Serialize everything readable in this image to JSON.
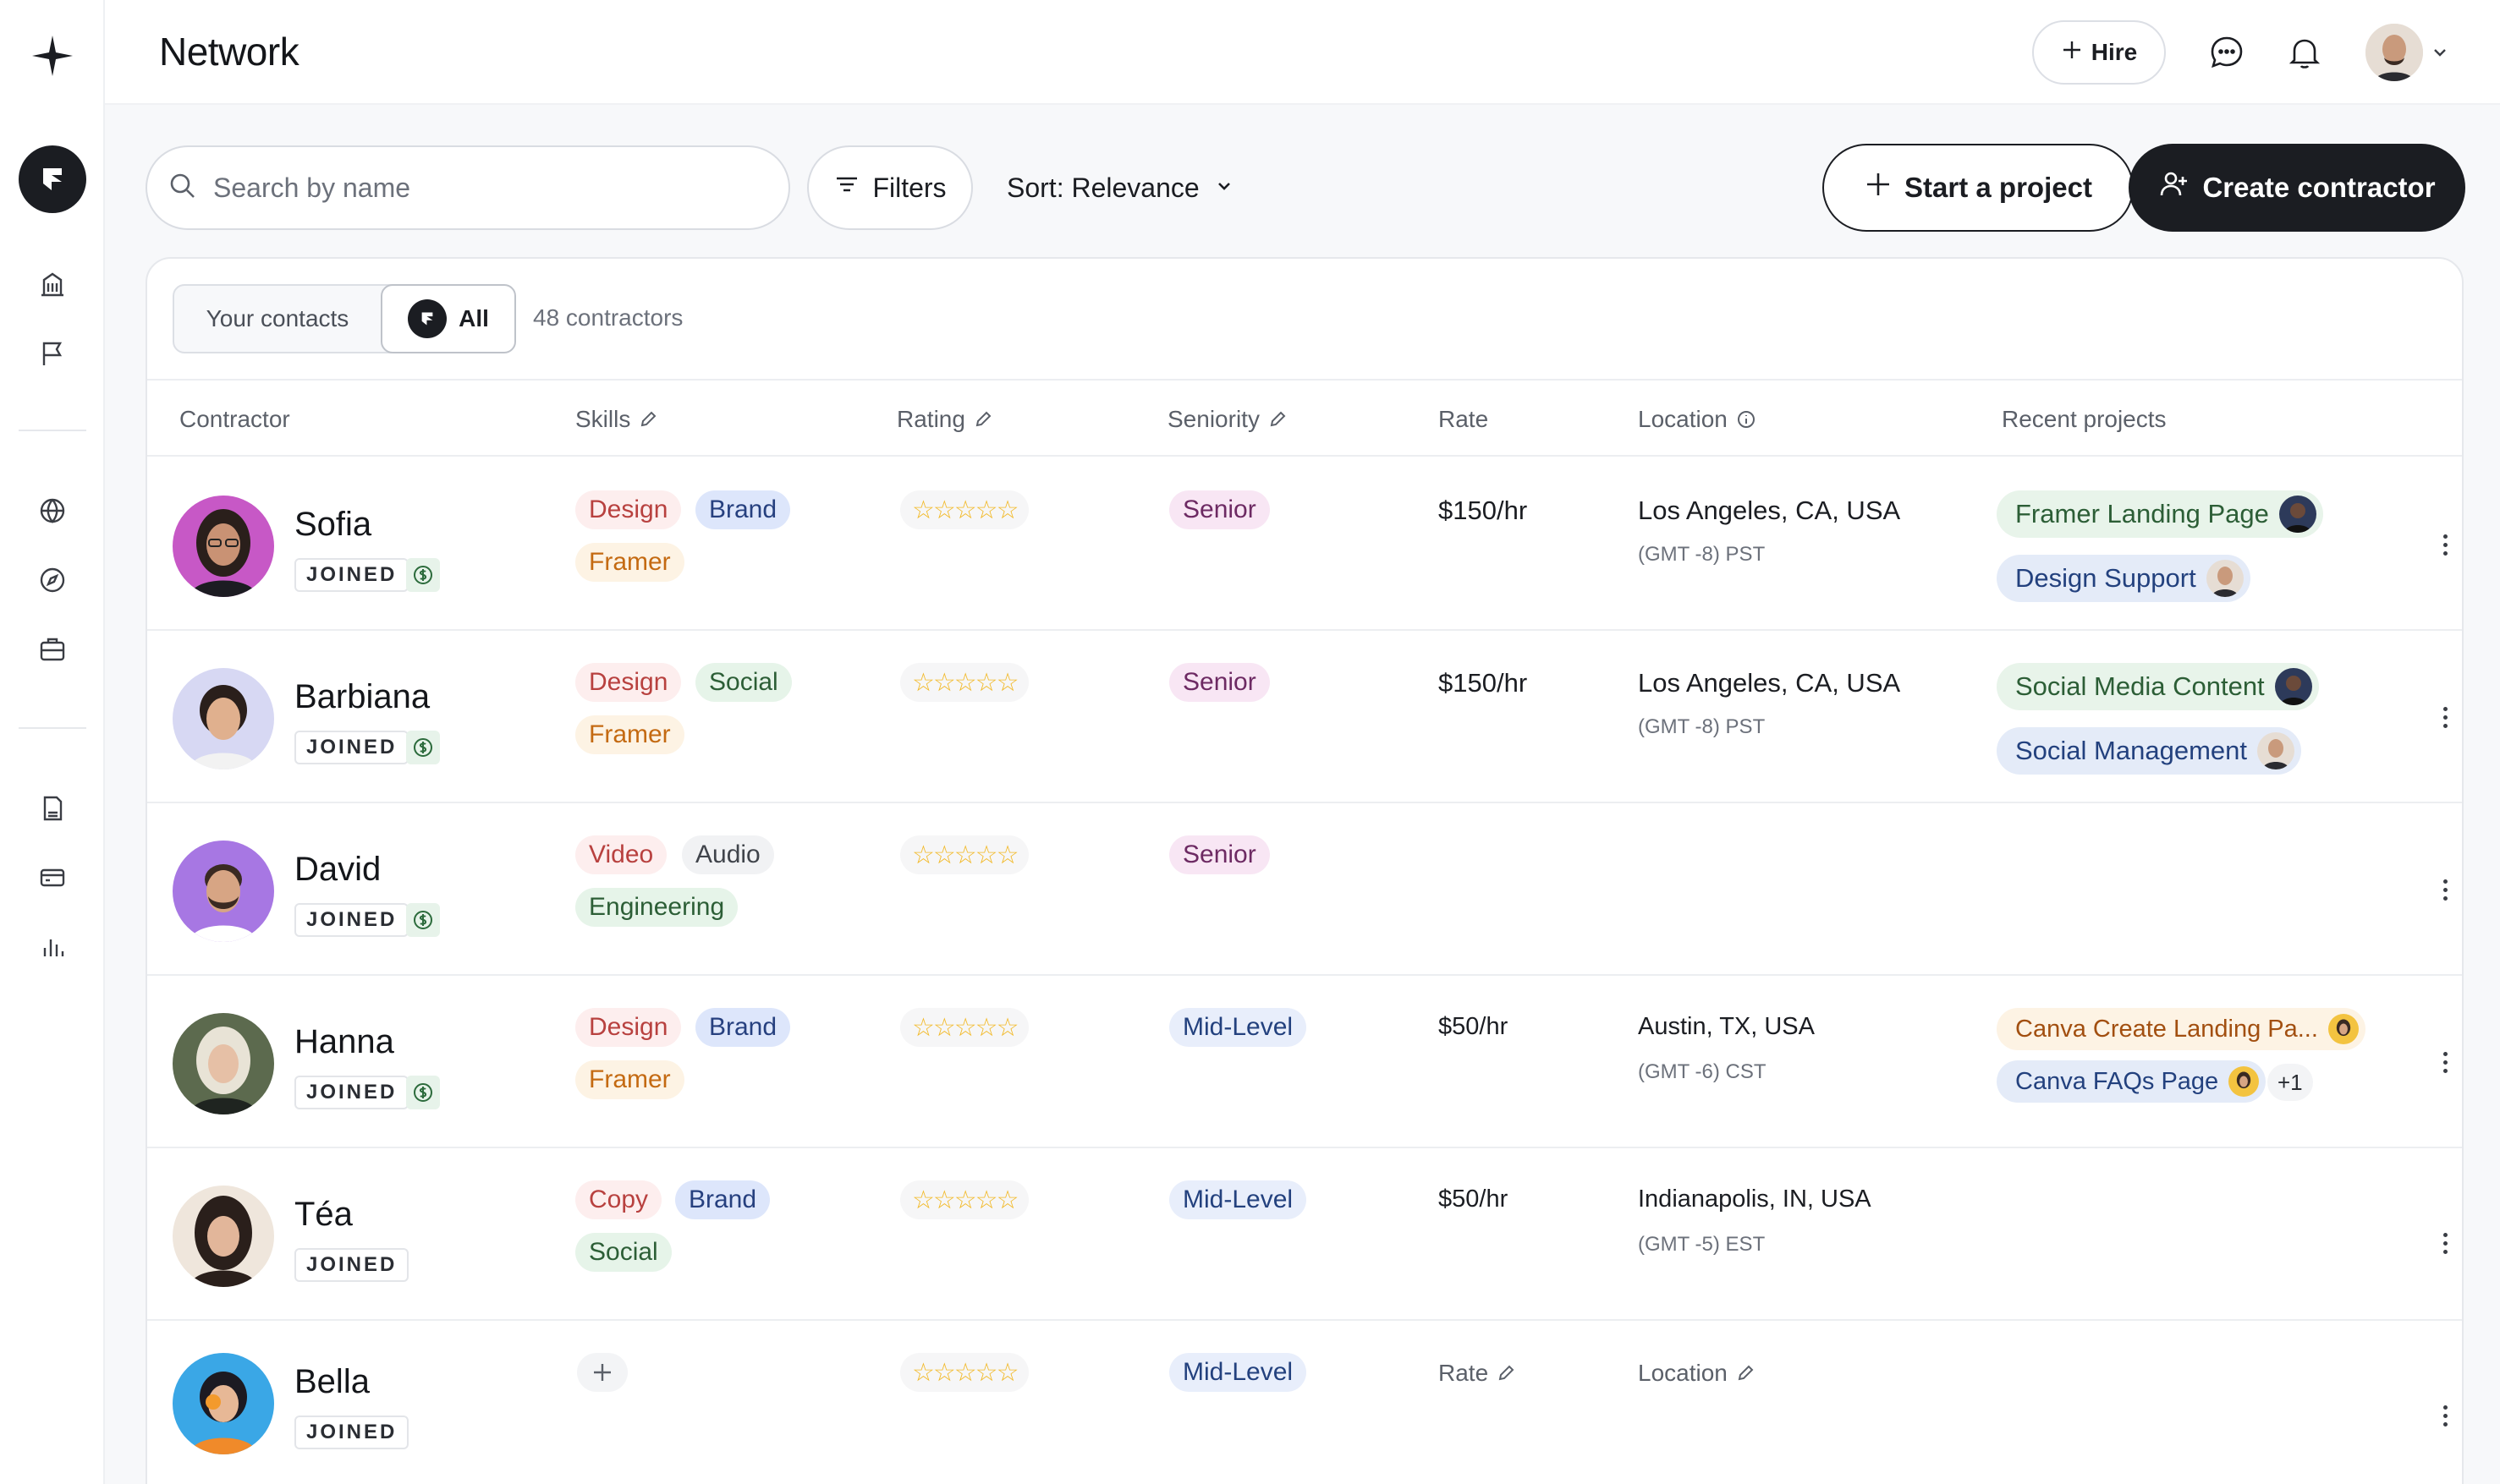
{
  "app": {
    "title": "Network",
    "hire_label": "Hire"
  },
  "toolbar": {
    "search_placeholder": "Search by name",
    "filters_label": "Filters",
    "sort_label": "Sort: Relevance",
    "start_project_label": "Start a project",
    "create_contractor_label": "Create contractor"
  },
  "segment": {
    "contacts_label": "Your contacts",
    "all_label": "All",
    "count_text": "48 contractors"
  },
  "table": {
    "headers": {
      "contractor": "Contractor",
      "skills": "Skills",
      "rating": "Rating",
      "seniority": "Seniority",
      "rate": "Rate",
      "location": "Location",
      "recent_projects": "Recent projects"
    },
    "joined_label": "JOINED",
    "rate_placeholder": "Rate",
    "location_placeholder": "Location",
    "rows": [
      {
        "name": "Sofia",
        "skills": [
          "Design",
          "Brand",
          "Framer"
        ],
        "stars": "☆☆☆☆☆",
        "seniority": "Senior",
        "rate": "$150/hr",
        "location": "Los Angeles, CA, USA",
        "timezone": "(GMT -8) PST",
        "projects": [
          "Framer Landing Page",
          "Design Support"
        ]
      },
      {
        "name": "Barbiana",
        "skills": [
          "Design",
          "Social",
          "Framer"
        ],
        "stars": "☆☆☆☆☆",
        "seniority": "Senior",
        "rate": "$150/hr",
        "location": "Los Angeles, CA, USA",
        "timezone": "(GMT -8) PST",
        "projects": [
          "Social Media Content",
          "Social Management"
        ]
      },
      {
        "name": "David",
        "skills": [
          "Video",
          "Audio",
          "Engineering"
        ],
        "stars": "☆☆☆☆☆",
        "seniority": "Senior"
      },
      {
        "name": "Hanna",
        "skills": [
          "Design",
          "Brand",
          "Framer"
        ],
        "stars": "☆☆☆☆☆",
        "seniority": "Mid-Level",
        "rate": "$50/hr",
        "location": "Austin, TX, USA",
        "timezone": "(GMT -6) CST",
        "projects": [
          "Canva Create Landing Pa...",
          "Canva FAQs Page"
        ],
        "more_projects": "+1"
      },
      {
        "name": "Téa",
        "skills": [
          "Copy",
          "Brand",
          "Social"
        ],
        "stars": "☆☆☆☆☆",
        "seniority": "Mid-Level",
        "rate": "$50/hr",
        "location": "Indianapolis, IN, USA",
        "timezone": "(GMT -5) EST"
      },
      {
        "name": "Bella",
        "stars": "☆☆☆☆☆",
        "seniority": "Mid-Level"
      }
    ]
  },
  "colors": {
    "primary_dark": "#1b1d22",
    "star": "#f2b927",
    "senior_bg": "#f8e6f4",
    "mid_bg": "#e8eefb"
  },
  "icons": {
    "sidebar": [
      "sparkle-logo-icon",
      "brand-icon",
      "building-icon",
      "flag-icon",
      "globe-icon",
      "compass-icon",
      "briefcase-icon",
      "document-icon",
      "card-icon",
      "chart-icon"
    ],
    "header": [
      "plus-icon",
      "chat-icon",
      "bell-icon",
      "chevron-down-icon"
    ]
  }
}
